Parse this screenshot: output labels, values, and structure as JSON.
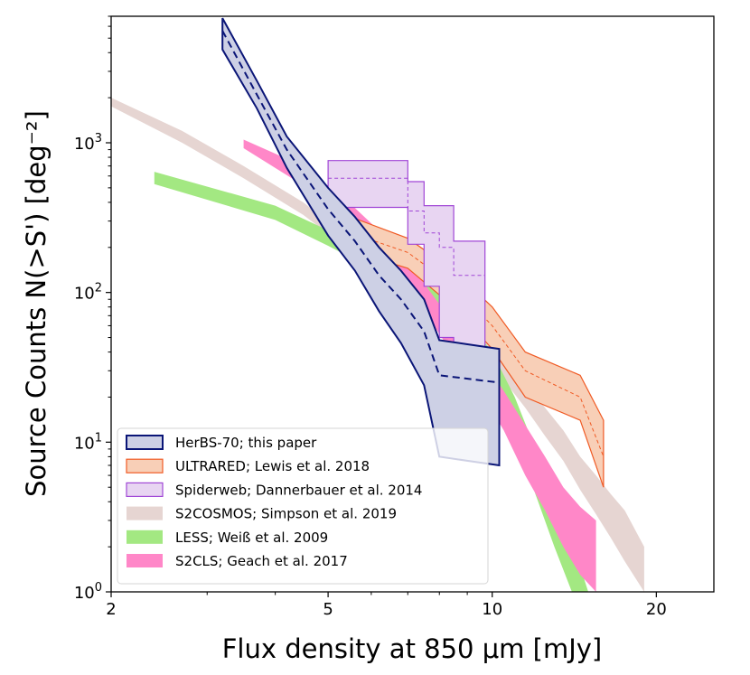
{
  "chart_data": {
    "type": "area",
    "title": "",
    "xlabel": "Flux density at 850 μm [mJy]",
    "ylabel": "Source Counts N(>S') [deg⁻²]",
    "xscale": "log",
    "yscale": "log",
    "xlim": [
      2,
      25.5
    ],
    "ylim": [
      1,
      7000
    ],
    "x_ticks": [
      {
        "value": 2,
        "label": "2"
      },
      {
        "value": 5,
        "label": "5"
      },
      {
        "value": 10,
        "label": "10"
      },
      {
        "value": 20,
        "label": "20"
      }
    ],
    "y_ticks": [
      {
        "value": 1,
        "base": "10",
        "exp": "0"
      },
      {
        "value": 10,
        "base": "10",
        "exp": "1"
      },
      {
        "value": 100,
        "base": "10",
        "exp": "2"
      },
      {
        "value": 1000,
        "base": "10",
        "exp": "3"
      }
    ],
    "legend_position": "lower-left",
    "series": [
      {
        "name": "S2COSMOS; Simpson et al. 2019",
        "style": "band",
        "fill": "#e6d5d2",
        "edge": "none",
        "x": [
          2.0,
          2.7,
          3.5,
          4.5,
          5.5,
          6.5,
          7.5,
          8.5,
          9.5,
          10.5,
          11.5,
          12.5,
          13.5,
          14.5,
          15.5,
          16.5,
          17.5,
          19.0
        ],
        "upper": [
          2000,
          1200,
          700,
          400,
          230,
          140,
          95,
          70,
          50,
          36,
          25,
          17,
          12,
          8.0,
          6.0,
          4.5,
          3.5,
          2.0
        ],
        "lower": [
          1750,
          1000,
          580,
          330,
          190,
          115,
          78,
          55,
          38,
          26,
          17,
          11,
          7.5,
          4.8,
          3.3,
          2.3,
          1.6,
          1.0
        ]
      },
      {
        "name": "LESS; Weiß et al. 2009",
        "style": "band",
        "fill": "#a3e882",
        "edge": "none",
        "x": [
          2.4,
          4.0,
          5.0,
          6.0,
          7.0,
          8.0,
          9.0,
          10.0,
          11.0,
          12.0,
          13.0,
          14.0,
          15.0
        ],
        "upper": [
          640,
          380,
          260,
          190,
          140,
          100,
          65,
          40,
          20,
          9.0,
          4.5,
          2.2,
          1.0
        ],
        "lower": [
          530,
          305,
          205,
          145,
          105,
          72,
          46,
          27,
          12,
          4.5,
          2.0,
          1.0,
          1.0
        ]
      },
      {
        "name": "S2CLS; Geach et al. 2017",
        "style": "band",
        "fill": "#ff87c8",
        "edge": "none",
        "x": [
          3.5,
          4.5,
          5.5,
          6.5,
          7.5,
          8.5,
          9.5,
          10.5,
          11.5,
          12.5,
          13.5,
          14.5,
          15.5
        ],
        "upper": [
          1050,
          700,
          390,
          220,
          115,
          62,
          38,
          22,
          13,
          8.0,
          5.0,
          3.7,
          3.0
        ],
        "lower": [
          920,
          520,
          280,
          150,
          75,
          38,
          22,
          12,
          6.0,
          3.5,
          2.0,
          1.3,
          1.0
        ]
      },
      {
        "name": "ULTRARED; Lewis et al. 2018",
        "style": "band",
        "fill": "#f8cfb7",
        "edge": "#f05a24",
        "x": [
          5.5,
          7.0,
          8.5,
          10.0,
          11.5,
          14.5,
          16.0
        ],
        "upper": [
          320,
          230,
          140,
          80,
          40,
          28,
          14
        ],
        "lower": [
          190,
          145,
          80,
          42,
          20,
          14,
          5
        ],
        "center": [
          250,
          185,
          110,
          60,
          30,
          20,
          8
        ]
      },
      {
        "name": "Spiderweb; Dannerbauer et al. 2014",
        "style": "step-band",
        "fill": "#e8d5f2",
        "edge": "#a046d6",
        "x": [
          5.0,
          6.5,
          7.0,
          7.5,
          8.0,
          8.5,
          9.7
        ],
        "upper": [
          760,
          760,
          550,
          380,
          380,
          220,
          220
        ],
        "lower": [
          370,
          370,
          210,
          110,
          50,
          38,
          38
        ],
        "center": [
          580,
          580,
          350,
          250,
          200,
          130,
          130
        ]
      },
      {
        "name": "HerBS-70; this paper",
        "style": "band",
        "fill": "#cdd0e5",
        "edge": "#0a1577",
        "x": [
          3.2,
          3.7,
          4.2,
          5.0,
          5.6,
          6.2,
          6.8,
          7.5,
          8.0,
          10.3
        ],
        "upper": [
          6800,
          2600,
          1100,
          500,
          320,
          200,
          140,
          90,
          48,
          42
        ],
        "lower": [
          4200,
          1700,
          680,
          240,
          140,
          75,
          46,
          24,
          8,
          7
        ],
        "center": [
          5600,
          2100,
          900,
          360,
          220,
          130,
          90,
          55,
          28,
          25
        ]
      }
    ],
    "legend": [
      {
        "label": "HerBS-70; this paper",
        "fill": "#cdd0e5",
        "edge": "#0a1577"
      },
      {
        "label": "ULTRARED; Lewis et al. 2018",
        "fill": "#f8cfb7",
        "edge": "#f05a24"
      },
      {
        "label": "Spiderweb; Dannerbauer et al. 2014",
        "fill": "#e8d5f2",
        "edge": "#a046d6"
      },
      {
        "label": "S2COSMOS; Simpson et al. 2019",
        "fill": "#e6d5d2",
        "edge": "none"
      },
      {
        "label": "LESS; Weiß et al. 2009",
        "fill": "#a3e882",
        "edge": "none"
      },
      {
        "label": "S2CLS; Geach et al. 2017",
        "fill": "#ff87c8",
        "edge": "none"
      }
    ]
  }
}
